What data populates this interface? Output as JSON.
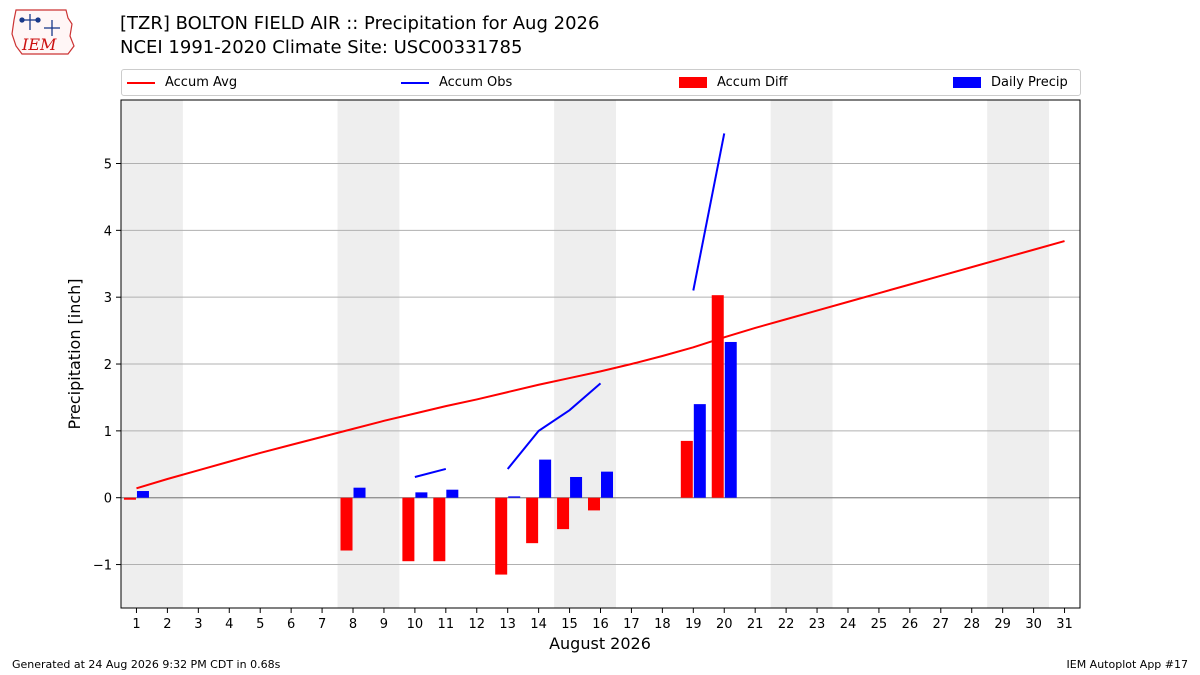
{
  "header": {
    "title_line1": "[TZR] BOLTON FIELD AIR :: Precipitation for Aug 2026",
    "title_line2": "NCEI 1991-2020 Climate Site: USC00331785",
    "logo_text": "IEM"
  },
  "legend": {
    "items": [
      {
        "label": "Accum Avg",
        "kind": "line",
        "color": "#ff0000"
      },
      {
        "label": "Accum Obs",
        "kind": "line",
        "color": "#0000ff"
      },
      {
        "label": "Accum Diff",
        "kind": "bar",
        "color": "#ff0000"
      },
      {
        "label": "Daily Precip",
        "kind": "bar",
        "color": "#0000ff"
      }
    ]
  },
  "footer": {
    "left": "Generated at 24 Aug 2026 9:32 PM CDT in 0.68s",
    "right": "IEM Autoplot App #17"
  },
  "chart_data": {
    "type": "bar",
    "xlabel": "August 2026",
    "ylabel": "Precipitation [inch]",
    "xlim": [
      0.5,
      31.5
    ],
    "ylim": [
      -1.65,
      5.95
    ],
    "x_ticks": [
      1,
      2,
      3,
      4,
      5,
      6,
      7,
      8,
      9,
      10,
      11,
      12,
      13,
      14,
      15,
      16,
      17,
      18,
      19,
      20,
      21,
      22,
      23,
      24,
      25,
      26,
      27,
      28,
      29,
      30,
      31
    ],
    "y_ticks": [
      -1,
      0,
      1,
      2,
      3,
      4,
      5
    ],
    "y_tick_labels": [
      "−1",
      "0",
      "1",
      "2",
      "3",
      "4",
      "5"
    ],
    "grid": "horizontal",
    "weekend_shading_days": [
      [
        1,
        2
      ],
      [
        8,
        9
      ],
      [
        15,
        16
      ],
      [
        22,
        23
      ],
      [
        29,
        30
      ]
    ],
    "shade_color": "#eeeeee",
    "accum_avg": {
      "name": "Accum Avg",
      "color": "#ff0000",
      "x": [
        1,
        2,
        3,
        4,
        5,
        6,
        7,
        8,
        9,
        10,
        11,
        12,
        13,
        14,
        15,
        16,
        17,
        18,
        19,
        20,
        21,
        22,
        23,
        24,
        25,
        26,
        27,
        28,
        29,
        30,
        31
      ],
      "values": [
        0.14,
        0.28,
        0.41,
        0.54,
        0.67,
        0.79,
        0.91,
        1.03,
        1.15,
        1.26,
        1.37,
        1.47,
        1.58,
        1.69,
        1.79,
        1.89,
        2.0,
        2.12,
        2.25,
        2.4,
        2.54,
        2.67,
        2.8,
        2.93,
        3.06,
        3.19,
        3.32,
        3.45,
        3.58,
        3.71,
        3.84
      ]
    },
    "accum_obs": {
      "name": "Accum Obs",
      "color": "#0000ff",
      "segments": [
        {
          "x": [
            10,
            11
          ],
          "values": [
            0.31,
            0.43
          ]
        },
        {
          "x": [
            13,
            14,
            15,
            16
          ],
          "values": [
            0.43,
            1.0,
            1.31,
            1.71
          ]
        },
        {
          "x": [
            19,
            20
          ],
          "values": [
            3.1,
            5.45
          ]
        }
      ]
    },
    "accum_diff": {
      "name": "Accum Diff",
      "color": "#ff0000",
      "x": [
        1,
        8,
        10,
        11,
        13,
        14,
        15,
        16,
        19,
        20
      ],
      "values": [
        -0.03,
        -0.79,
        -0.95,
        -0.95,
        -1.15,
        -0.68,
        -0.47,
        -0.19,
        0.85,
        3.03
      ]
    },
    "daily_precip": {
      "name": "Daily Precip",
      "color": "#0000ff",
      "x": [
        1,
        8,
        10,
        11,
        13,
        14,
        15,
        16,
        19,
        20
      ],
      "values": [
        0.1,
        0.15,
        0.08,
        0.12,
        0.02,
        0.57,
        0.31,
        0.39,
        1.4,
        2.33
      ]
    }
  }
}
